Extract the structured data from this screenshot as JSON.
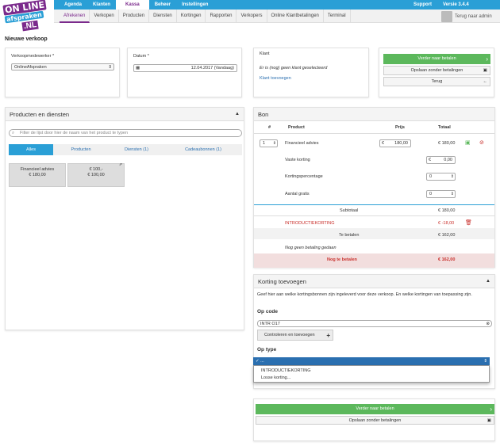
{
  "logo": {
    "line1": "ON LINE",
    "line2": "afspraken",
    "line3": ".NL"
  },
  "topnav": [
    "Agenda",
    "Klanten",
    "Kassa",
    "Beheer",
    "Instellingen"
  ],
  "topnav_right": {
    "support": "Support",
    "version": "Versie 3.4.4"
  },
  "subnav": [
    "Afrekenen",
    "Verkopen",
    "Producten",
    "Diensten",
    "Kortingen",
    "Rapporten",
    "Verkopers",
    "Online Klantbetalingen",
    "Terminal"
  ],
  "user": {
    "back": "Terug naar admin"
  },
  "page_title": "Nieuwe verkoop",
  "seller": {
    "label": "Verkoopmedewerker *",
    "value": "OnlineAfspraken"
  },
  "date": {
    "label": "Datum *",
    "value": "12.04.2017 (Vandaag)"
  },
  "client": {
    "label": "Klant",
    "info": "Er is (nog) geen klant geselecteerd",
    "add": "Klant toevoegen"
  },
  "actions": {
    "pay": "Verder naar betalen",
    "save": "Opslaan zonder betalingen",
    "back": "Terug"
  },
  "products": {
    "title": "Producten en diensten",
    "search_placeholder": "Filter de lijst door hier de naam van het product te typen",
    "tabs": [
      "Alles",
      "Producten",
      "Diensten (1)",
      "Cadeaubonnen (1)"
    ],
    "tiles": [
      {
        "name": "Financieel advies",
        "price": "€ 180,00"
      },
      {
        "name": "€ 100,-",
        "price": "€ 100,00"
      }
    ]
  },
  "bon": {
    "title": "Bon",
    "headers": {
      "num": "#",
      "product": "Product",
      "price": "Prijs",
      "total": "Totaal"
    },
    "item": {
      "qty": "1",
      "name": "Financieel advies",
      "currency": "€",
      "price": "180,00",
      "total": "€ 180,00"
    },
    "fields": [
      {
        "label": "Vaste korting",
        "value": "0,00",
        "currency": "€"
      },
      {
        "label": "Kortingspercentage",
        "value": "0"
      },
      {
        "label": "Aantal gratis",
        "value": "0"
      }
    ],
    "subtotal_label": "Subtotaal",
    "subtotal": "€ 180,00",
    "discount_label": "INTRODUCTIEKORTING",
    "discount": "€ -18,00",
    "topay_label": "Te betalen",
    "topay": "€ 162,00",
    "nopay": "Nog geen betaling gedaan",
    "remaining_label": "Nog te betalen",
    "remaining": "€ 162,00"
  },
  "discount_panel": {
    "title": "Korting toevoegen",
    "desc": "Geef hier aan welke kortingsbonnen zijn ingeleverd voor deze verkoop. En welke kortingen van toepassing zijn.",
    "code_label": "Op code",
    "code_value": "INTR O17",
    "check_btn": "Controleren en toevoegen",
    "type_label": "Op type",
    "type_selected": "...",
    "options": [
      "INTRODUCTIEKORTING",
      "Losse korting..."
    ]
  },
  "bottom": {
    "pay": "Verder naar betalen",
    "save": "Opslaan zonder betalingen"
  }
}
